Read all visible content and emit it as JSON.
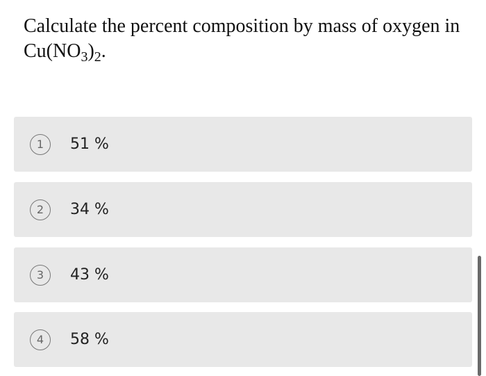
{
  "question": {
    "text": "Calculate the percent composition by mass of oxygen in",
    "formula": [
      "Cu(NO",
      "3",
      ")",
      "2",
      "."
    ]
  },
  "options": [
    {
      "number": "1",
      "text": "51 %"
    },
    {
      "number": "2",
      "text": "34 %"
    },
    {
      "number": "3",
      "text": "43 %"
    },
    {
      "number": "4",
      "text": "58 %"
    }
  ]
}
